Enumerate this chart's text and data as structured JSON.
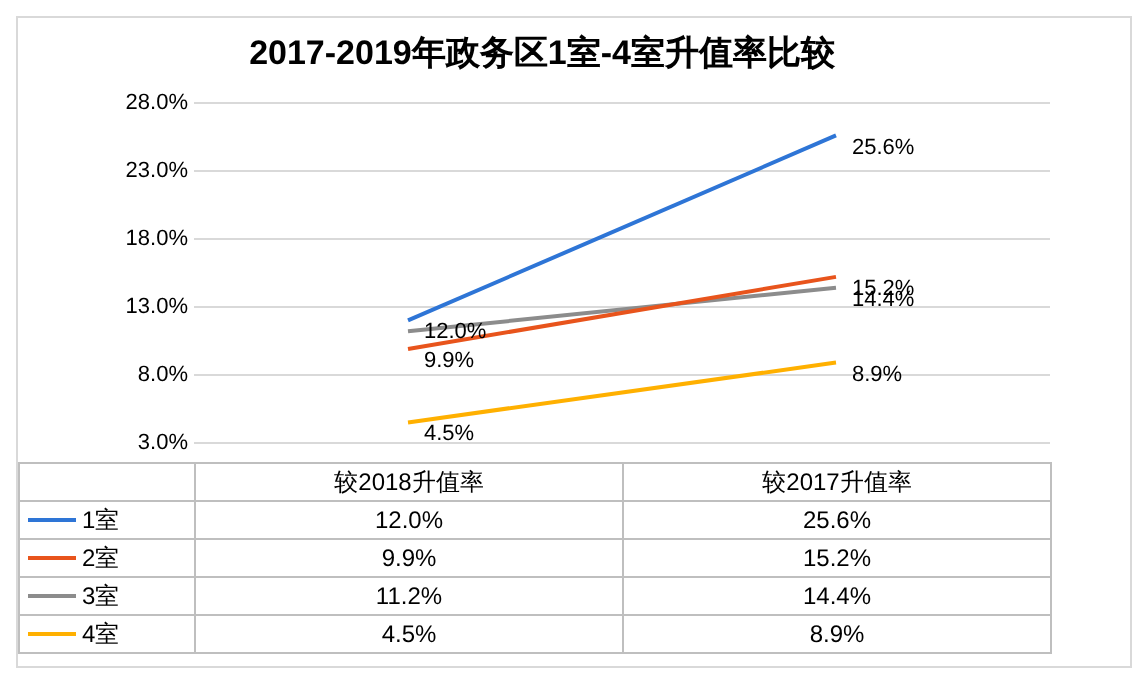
{
  "chart_data": {
    "type": "line",
    "title": "2017-2019年政务区1室-4室升值率比较",
    "categories": [
      "较2018升值率",
      "较2017升值率"
    ],
    "series": [
      {
        "name": "1室",
        "color": "#2e75d6",
        "values": [
          12.0,
          25.6
        ],
        "value_labels": [
          "12.0%",
          "25.6%"
        ]
      },
      {
        "name": "2室",
        "color": "#e8541c",
        "values": [
          9.9,
          15.2
        ],
        "value_labels": [
          "9.9%",
          "15.2%"
        ]
      },
      {
        "name": "3室",
        "color": "#8c8c8c",
        "values": [
          11.2,
          14.4
        ],
        "value_labels": [
          "11.2%",
          "14.4%"
        ]
      },
      {
        "name": "4室",
        "color": "#ffb000",
        "values": [
          4.5,
          8.9
        ],
        "value_labels": [
          "4.5%",
          "8.9%"
        ]
      }
    ],
    "ylim": [
      3,
      28
    ],
    "yticks": [
      {
        "value": 3,
        "label": "3.0%"
      },
      {
        "value": 8,
        "label": "8.0%"
      },
      {
        "value": 13,
        "label": "13.0%"
      },
      {
        "value": 18,
        "label": "18.0%"
      },
      {
        "value": 23,
        "label": "23.0%"
      },
      {
        "value": 28,
        "label": "28.0%"
      }
    ],
    "grid": "y",
    "legend": "bottom",
    "marker": "none",
    "line_style": "solid",
    "annotations": [
      {
        "text": "12.0%",
        "x": "较2018升值率",
        "y": 12.0
      },
      {
        "text": "25.6%",
        "x": "较2017升值率",
        "y": 25.6
      },
      {
        "text": "9.9%",
        "x": "较2018升值率",
        "y": 9.9
      },
      {
        "text": "15.2%",
        "x": "较2017升值率",
        "y": 15.2
      },
      {
        "text": "14.4%",
        "x": "较2017升值率",
        "y": 14.4
      },
      {
        "text": "4.5%",
        "x": "较2018升值率",
        "y": 4.5
      },
      {
        "text": "8.9%",
        "x": "较2017升值率",
        "y": 8.9
      }
    ]
  }
}
